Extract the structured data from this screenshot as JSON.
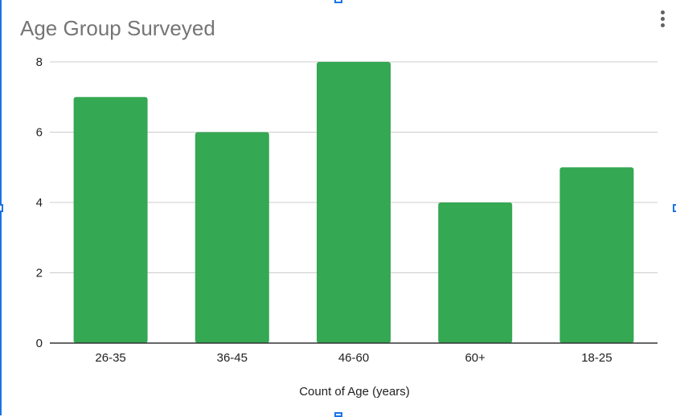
{
  "chart_data": {
    "type": "bar",
    "title": "Age Group Surveyed",
    "xlabel": "Count of Age (years)",
    "ylabel": "",
    "categories": [
      "26-35",
      "36-45",
      "46-60",
      "60+",
      "18-25"
    ],
    "values": [
      7,
      6,
      8,
      4,
      5
    ],
    "ylim": [
      0,
      8
    ],
    "yticks": [
      "0",
      "2",
      "4",
      "6",
      "8"
    ],
    "grid": true,
    "legend": "none",
    "bar_color": "#34a853"
  },
  "colors": {
    "title": "#757575",
    "gridline": "#cccccc",
    "axis": "#333333",
    "selection": "#1a73e8"
  },
  "menu": {
    "icon": "more-vert-icon"
  }
}
